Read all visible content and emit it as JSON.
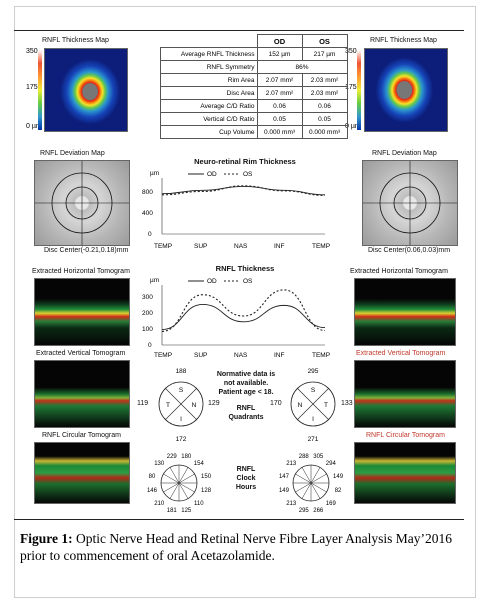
{
  "left": {
    "thickness_map_title": "RNFL Thickness Map",
    "scale_top": "350",
    "scale_mid": "175",
    "scale_bot": "0 µm",
    "deviation_title": "RNFL Deviation Map",
    "disc_center": "Disc Center(-0.21,0.18)mm",
    "horizontal_title": "Extracted Horizontal Tomogram",
    "vertical_title": "Extracted Vertical Tomogram",
    "circular_title": "RNFL Circular Tomogram"
  },
  "right": {
    "thickness_map_title": "RNFL Thickness Map",
    "scale_top": "350",
    "scale_mid": "175",
    "scale_bot": "0 µm",
    "deviation_title": "RNFL Deviation Map",
    "disc_center": "Disc Center(0.06,0.03)mm",
    "horizontal_title": "Extracted Horizontal Tomogram",
    "vertical_title": "Extracted Vertical Tomogram",
    "circular_title": "RNFL Circular Tomogram"
  },
  "table": {
    "headers": [
      "",
      "OD",
      "OS"
    ],
    "rows": [
      {
        "label": "Average RNFL Thickness",
        "od": "152 µm",
        "os": "217 µm"
      },
      {
        "label": "RNFL Symmetry",
        "span": "86%"
      },
      {
        "label": "Rim Area",
        "od": "2.07 mm²",
        "os": "2.03 mm²"
      },
      {
        "label": "Disc Area",
        "od": "2.07 mm²",
        "os": "2.03 mm²"
      },
      {
        "label": "Average C/D Ratio",
        "od": "0.06",
        "os": "0.06"
      },
      {
        "label": "Vertical C/D Ratio",
        "od": "0.05",
        "os": "0.05"
      },
      {
        "label": "Cup Volume",
        "od": "0.000 mm³",
        "os": "0.000 mm³"
      }
    ]
  },
  "rim_chart": {
    "title": "Neuro-retinal Rim Thickness",
    "unit": "µm",
    "legend_od": "OD",
    "legend_os": "OS",
    "yticks": [
      "800",
      "400",
      "0"
    ],
    "xticks": [
      "TEMP",
      "SUP",
      "NAS",
      "INF",
      "TEMP"
    ]
  },
  "rnfl_chart": {
    "title": "RNFL Thickness",
    "unit": "µm",
    "legend_od": "OD",
    "legend_os": "OS",
    "yticks": [
      "300",
      "200",
      "100",
      "0"
    ],
    "xticks": [
      "TEMP",
      "SUP",
      "NAS",
      "INF",
      "TEMP"
    ]
  },
  "chart_data": [
    {
      "type": "line",
      "title": "Neuro-retinal Rim Thickness",
      "xlabel": "",
      "ylabel": "µm",
      "x": [
        "TEMP",
        "SUP",
        "NAS",
        "INF",
        "TEMP"
      ],
      "ylim": [
        0,
        1000
      ],
      "series": [
        {
          "name": "OD",
          "values": [
            720,
            780,
            850,
            780,
            700
          ]
        },
        {
          "name": "OS",
          "values": [
            700,
            760,
            860,
            770,
            690
          ]
        }
      ]
    },
    {
      "type": "line",
      "title": "RNFL Thickness",
      "xlabel": "",
      "ylabel": "µm",
      "x": [
        "TEMP",
        "SUP",
        "NAS",
        "INF",
        "TEMP"
      ],
      "ylim": [
        0,
        300
      ],
      "series": [
        {
          "name": "OD",
          "values": [
            80,
            210,
            120,
            205,
            90
          ]
        },
        {
          "name": "OS",
          "values": [
            70,
            260,
            150,
            285,
            75
          ]
        }
      ]
    }
  ],
  "quadrants": {
    "note_line1": "Normative data is",
    "note_line2": "not available.",
    "note_line3": "Patient age < 18.",
    "title_line1": "RNFL",
    "title_line2": "Quadrants",
    "od": {
      "S": "S",
      "T": "T",
      "N": "N",
      "I": "I",
      "top": "188",
      "left": "119",
      "right": "129",
      "bottom": "172"
    },
    "os": {
      "S": "S",
      "T": "T",
      "N": "N",
      "I": "I",
      "top": "295",
      "left": "170",
      "right": "133",
      "bottom": "271"
    }
  },
  "clock": {
    "title_line1": "RNFL",
    "title_line2": "Clock",
    "title_line3": "Hours",
    "od": [
      "180",
      "154",
      "150",
      "128",
      "110",
      "125",
      "181",
      "210",
      "146",
      "80",
      "130",
      "229"
    ],
    "os": [
      "305",
      "294",
      "149",
      "82",
      "169",
      "266",
      "295",
      "213",
      "149",
      "147",
      "213",
      "288"
    ]
  },
  "caption": {
    "label": "Figure 1:",
    "text": " Optic Nerve Head and Retinal Nerve Fibre Layer Analysis May’2016 prior to commencement of oral Acetazolamide."
  }
}
